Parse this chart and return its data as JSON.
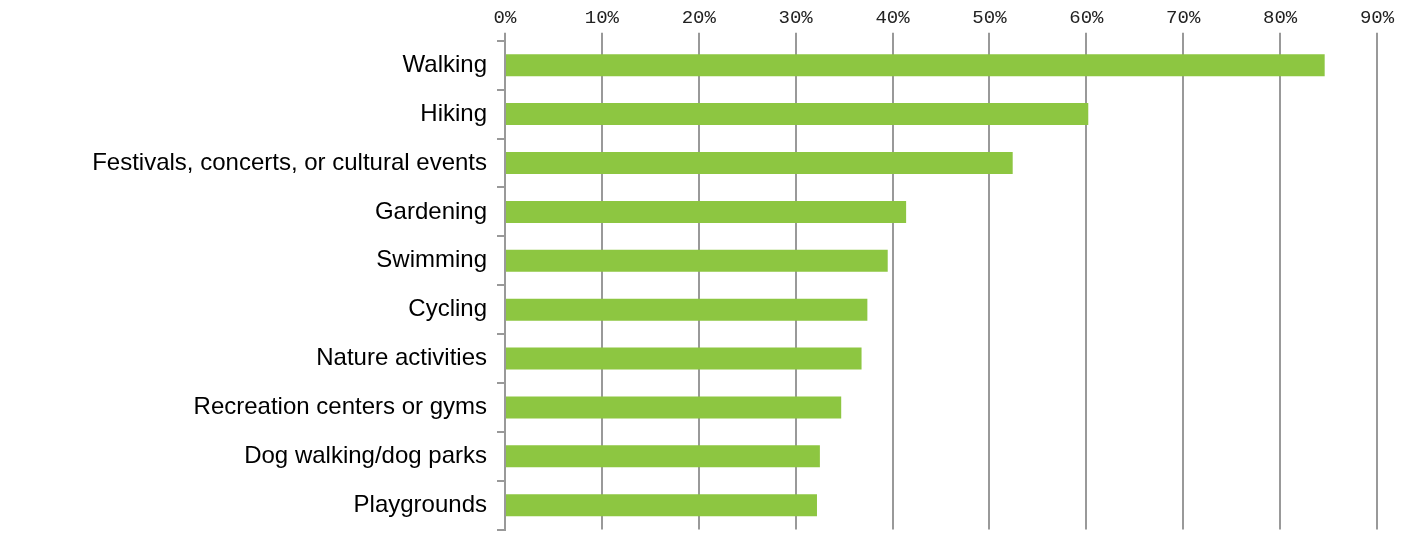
{
  "chart_data": {
    "type": "bar",
    "orientation": "horizontal",
    "categories": [
      "Walking",
      "Hiking",
      "Festivals, concerts, or cultural events",
      "Gardening",
      "Swimming",
      "Cycling",
      "Nature activities",
      "Recreation centers or gyms",
      "Dog walking/dog parks",
      "Playgrounds"
    ],
    "values": [
      84.6,
      60.2,
      52.4,
      41.4,
      39.5,
      37.4,
      36.8,
      34.7,
      32.5,
      32.2
    ],
    "color": "#8dc641",
    "xlim": [
      0,
      90
    ],
    "xticks": [
      {
        "value": 0,
        "label": "0%"
      },
      {
        "value": 10,
        "label": "10%"
      },
      {
        "value": 20,
        "label": "20%"
      },
      {
        "value": 30,
        "label": "30%"
      },
      {
        "value": 40,
        "label": "40%"
      },
      {
        "value": 50,
        "label": "50%"
      },
      {
        "value": 60,
        "label": "60%"
      },
      {
        "value": 70,
        "label": "70%"
      },
      {
        "value": 80,
        "label": "80%"
      },
      {
        "value": 90,
        "label": "90%"
      }
    ],
    "grid": "x",
    "legend": false
  }
}
